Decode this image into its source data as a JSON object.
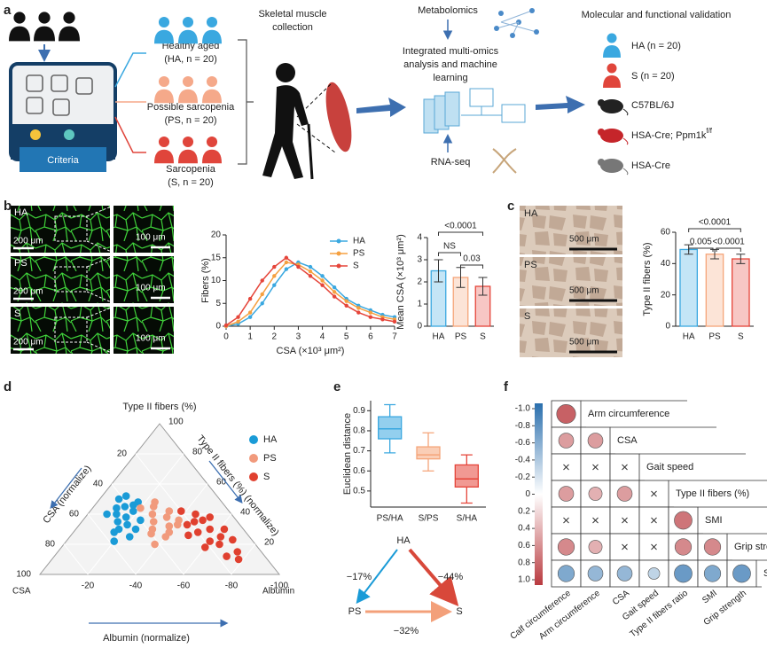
{
  "figure": {
    "panel_labels": [
      "a",
      "b",
      "c",
      "d",
      "e",
      "f"
    ],
    "a": {
      "groups": [
        {
          "name": "Healthy aged",
          "code": "(HA, n = 20)"
        },
        {
          "name": "Possible sarcopenia",
          "code": "(PS, n = 20)"
        },
        {
          "name": "Sarcopenia",
          "code": "(S, n = 20)"
        }
      ],
      "criteria": "Criteria",
      "collection": [
        "Skeletal muscle",
        "collection"
      ],
      "metabolomics": "Metabolomics",
      "integration": [
        "Integrated multi-omics",
        "analysis and machine",
        "learning"
      ],
      "rnaseq": "RNA-seq",
      "validation_title": "Molecular and functional validation",
      "validation": [
        "HA (n = 20)",
        "S (n = 20)",
        "C57BL/6J",
        "HSA-Cre; Ppm1k",
        "HSA-Cre"
      ],
      "superscript": "f/f"
    },
    "b_images": {
      "rows": [
        "HA",
        "PS",
        "S"
      ],
      "scale_left": "200 μm",
      "scale_right": "100 μm"
    },
    "c_images": {
      "rows": [
        "HA",
        "PS",
        "S"
      ],
      "scale": "500 μm"
    },
    "e_diagram": {
      "nodes": [
        "HA",
        "PS",
        "S"
      ],
      "edges": [
        "−17%",
        "−32%",
        "−44%"
      ]
    }
  },
  "chart_data": [
    {
      "type": "line",
      "x": [
        0,
        0.5,
        1,
        1.5,
        2,
        2.5,
        3,
        3.5,
        4,
        4.5,
        5,
        5.5,
        6,
        6.5,
        7
      ],
      "series": [
        {
          "name": "HA",
          "color": "#3aa8e0",
          "values": [
            0,
            0.5,
            2,
            5,
            9,
            12.5,
            14,
            13,
            11,
            8.5,
            6,
            4.5,
            3.5,
            2.5,
            2
          ]
        },
        {
          "name": "PS",
          "color": "#f5a040",
          "values": [
            0,
            1,
            3,
            7,
            11,
            14,
            13.5,
            12,
            10,
            7.5,
            5.5,
            4,
            3,
            2,
            1.5
          ]
        },
        {
          "name": "S",
          "color": "#e5453a",
          "values": [
            0.2,
            2,
            6,
            10,
            13,
            15,
            13,
            11,
            9,
            6.5,
            4.5,
            3,
            2,
            1.5,
            1
          ]
        }
      ],
      "xlim": [
        0,
        7
      ],
      "xticks": [
        0,
        1,
        2,
        3,
        4,
        5,
        6,
        7
      ],
      "ylim": [
        0,
        20
      ],
      "yticks": [
        0,
        5,
        10,
        15,
        20
      ],
      "xlabel": "CSA (×10³ μm²)",
      "ylabel": "Fibers (%)"
    },
    {
      "type": "bar",
      "categories": [
        "HA",
        "PS",
        "S"
      ],
      "values": [
        2.5,
        2.2,
        1.8
      ],
      "errors": [
        0.5,
        0.45,
        0.4
      ],
      "colors": [
        "#3aa8e0",
        "#f5a57a",
        "#e5453a"
      ],
      "ylim": [
        0,
        4
      ],
      "yticks": [
        0,
        1,
        2,
        3,
        4
      ],
      "ylabel": "Mean CSA (×10³ μm²)",
      "significance": [
        "<0.0001",
        "NS",
        "0.03"
      ]
    },
    {
      "type": "bar",
      "categories": [
        "HA",
        "PS",
        "S"
      ],
      "values": [
        49,
        46,
        43
      ],
      "errors": [
        3,
        3,
        3
      ],
      "colors": [
        "#3aa8e0",
        "#f5a57a",
        "#e5453a"
      ],
      "ylim": [
        0,
        60
      ],
      "yticks": [
        0,
        20,
        40,
        60
      ],
      "ylabel": "Type II fibers (%)",
      "significance": [
        "<0.0001",
        "0.005",
        "<0.0001"
      ]
    },
    {
      "type": "ternary",
      "axes": {
        "top": "Type II fibers (%)",
        "left": "CSA (normalize)",
        "right": "Type II fibers (%) (normalize)",
        "bottom": "Albumin (normalize)",
        "left_corner": "CSA",
        "right_corner": "Albumin"
      },
      "left_ticks": [
        20,
        40,
        60,
        80,
        100
      ],
      "right_ticks": [
        20,
        40,
        60,
        80,
        100
      ],
      "bottom_ticks": [
        -20,
        -40,
        -60,
        -80,
        -100
      ],
      "series": [
        {
          "name": "HA",
          "color": "#1a9bd7",
          "type_ii": [
            52,
            45,
            40,
            35,
            30,
            48,
            42,
            38,
            33,
            28,
            25,
            44,
            36,
            50,
            30,
            22,
            40,
            46
          ],
          "csa": [
            38,
            42,
            48,
            50,
            52,
            35,
            40,
            45,
            47,
            55,
            50,
            46,
            40,
            42,
            45,
            58,
            52,
            38
          ]
        },
        {
          "name": "PS",
          "color": "#f19a7c",
          "type_ii": [
            45,
            40,
            38,
            35,
            32,
            30,
            42,
            28,
            25,
            36,
            44,
            33,
            27,
            48,
            20
          ],
          "csa": [
            30,
            33,
            28,
            35,
            30,
            38,
            25,
            32,
            35,
            24,
            36,
            26,
            40,
            28,
            42
          ]
        },
        {
          "name": "S",
          "color": "#e0402f",
          "type_ii": [
            40,
            35,
            30,
            28,
            25,
            22,
            38,
            33,
            20,
            18,
            15,
            30,
            42,
            26,
            12,
            36,
            23,
            10
          ],
          "csa": [
            15,
            18,
            14,
            20,
            12,
            18,
            10,
            22,
            15,
            22,
            10,
            8,
            20,
            25,
            16,
            14,
            8,
            12
          ]
        }
      ]
    },
    {
      "type": "box",
      "categories": [
        "PS/HA",
        "S/PS",
        "S/HA"
      ],
      "min": [
        0.69,
        0.6,
        0.44
      ],
      "q1": [
        0.76,
        0.66,
        0.52
      ],
      "median": [
        0.81,
        0.68,
        0.56
      ],
      "q3": [
        0.87,
        0.72,
        0.63
      ],
      "max": [
        0.93,
        0.79,
        0.68
      ],
      "colors": [
        "#3aa8e0",
        "#f5a57a",
        "#e5453a"
      ],
      "ylim": [
        0.42,
        0.95
      ],
      "yticks": [
        0.5,
        0.6,
        0.7,
        0.8,
        0.9
      ],
      "ylabel": "Euclidean distance"
    },
    {
      "type": "correlation",
      "rows": [
        "Arm circumference",
        "CSA",
        "Gait speed",
        "Type II fibers (%)",
        "SMI",
        "Grip strength",
        "Stage"
      ],
      "columns": [
        "Calf circumference",
        "Arm circumference",
        "CSA",
        "Gait speed",
        "Type II fibers ratio",
        "SMI",
        "Grip strength"
      ],
      "values": [
        [
          0.8
        ],
        [
          0.5,
          0.5
        ],
        [
          null,
          null,
          null
        ],
        [
          0.5,
          0.4,
          0.5,
          null
        ],
        [
          null,
          null,
          null,
          null,
          0.7
        ],
        [
          0.6,
          0.4,
          null,
          null,
          0.6,
          0.6
        ],
        [
          -0.6,
          -0.5,
          -0.5,
          -0.3,
          -0.7,
          -0.6,
          -0.7
        ]
      ],
      "clim": [
        -1,
        1
      ],
      "colorbar_ticks": [
        {
          "value": -1,
          "label": "-1.0"
        },
        -0.8,
        -0.6,
        -0.4,
        -0.2,
        0,
        0.2,
        0.4,
        0.6,
        0.8,
        {
          "value": 1,
          "label": "1.0"
        }
      ]
    }
  ]
}
